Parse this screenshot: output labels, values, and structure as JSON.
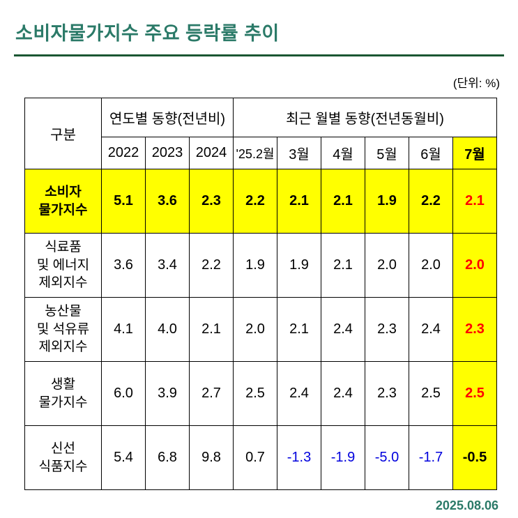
{
  "page": {
    "title": "소비자물가지수 주요 등락률 추이",
    "unit_label": "(단위: %)",
    "date": "2025.08.06"
  },
  "colors": {
    "title": "#2b7a68",
    "underline": "#1a5632",
    "highlight": "#ffff00",
    "emphasis_red": "#ff0000",
    "negative_blue": "#0000dd"
  },
  "table": {
    "header": {
      "category": "구분",
      "yearly_group": "연도별 동향(전년비)",
      "monthly_group": "최근 월별 동향(전년동월비)",
      "cols": [
        "2022",
        "2023",
        "2024",
        "'25.2월",
        "3월",
        "4월",
        "5월",
        "6월",
        "7월"
      ]
    },
    "rows": [
      {
        "label": "소비자\n물가지수",
        "values": [
          "5.1",
          "3.6",
          "2.3",
          "2.2",
          "2.1",
          "2.1",
          "1.9",
          "2.2",
          "2.1"
        ]
      },
      {
        "label": "식료품\n및 에너지\n제외지수",
        "values": [
          "3.6",
          "3.4",
          "2.2",
          "1.9",
          "1.9",
          "2.1",
          "2.0",
          "2.0",
          "2.0"
        ]
      },
      {
        "label": "농산물\n및 석유류\n제외지수",
        "values": [
          "4.1",
          "4.0",
          "2.1",
          "2.0",
          "2.1",
          "2.4",
          "2.3",
          "2.4",
          "2.3"
        ]
      },
      {
        "label": "생활\n물가지수",
        "values": [
          "6.0",
          "3.9",
          "2.7",
          "2.5",
          "2.4",
          "2.4",
          "2.3",
          "2.5",
          "2.5"
        ]
      },
      {
        "label": "신선\n식품지수",
        "values": [
          "5.4",
          "6.8",
          "9.8",
          "0.7",
          "-1.3",
          "-1.9",
          "-5.0",
          "-1.7",
          "-0.5"
        ]
      }
    ]
  },
  "chart_data": {
    "type": "table",
    "title": "소비자물가지수 주요 등락률 추이",
    "unit": "%",
    "column_groups": [
      {
        "label": "연도별 동향(전년비)",
        "columns": [
          "2022",
          "2023",
          "2024"
        ]
      },
      {
        "label": "최근 월별 동향(전년동월비)",
        "columns": [
          "'25.2월",
          "3월",
          "4월",
          "5월",
          "6월",
          "7월"
        ]
      }
    ],
    "categories": [
      "2022",
      "2023",
      "2024",
      "'25.2월",
      "3월",
      "4월",
      "5월",
      "6월",
      "7월"
    ],
    "series": [
      {
        "name": "소비자물가지수",
        "values": [
          5.1,
          3.6,
          2.3,
          2.2,
          2.1,
          2.1,
          1.9,
          2.2,
          2.1
        ]
      },
      {
        "name": "식료품 및 에너지 제외지수",
        "values": [
          3.6,
          3.4,
          2.2,
          1.9,
          1.9,
          2.1,
          2.0,
          2.0,
          2.0
        ]
      },
      {
        "name": "농산물 및 석유류 제외지수",
        "values": [
          4.1,
          4.0,
          2.1,
          2.0,
          2.1,
          2.4,
          2.3,
          2.4,
          2.3
        ]
      },
      {
        "name": "생활물가지수",
        "values": [
          6.0,
          3.9,
          2.7,
          2.5,
          2.4,
          2.4,
          2.3,
          2.5,
          2.5
        ]
      },
      {
        "name": "신선식품지수",
        "values": [
          5.4,
          6.8,
          9.8,
          0.7,
          -1.3,
          -1.9,
          -5.0,
          -1.7,
          -0.5
        ]
      }
    ]
  }
}
